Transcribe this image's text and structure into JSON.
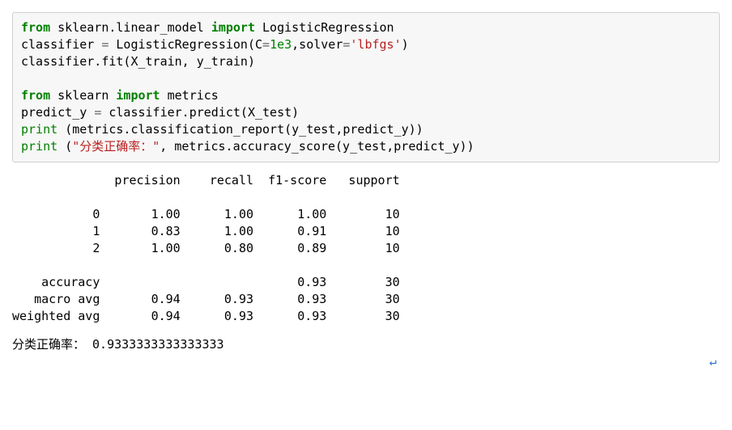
{
  "code": {
    "kw_from": "from",
    "kw_import": "import",
    "mod_linear_model": "sklearn.linear_model",
    "cls_logreg": "LogisticRegression",
    "assign_classifier": "classifier ",
    "eq": "=",
    "space": " ",
    "logreg_call_open": "LogisticRegression(C",
    "c_val": "1e3",
    "solver_kw": ",solver",
    "solver_val": "'lbfgs'",
    "close_paren": ")",
    "fit_line": "classifier.fit(X_train, y_train)",
    "mod_sklearn": "sklearn",
    "metrics_word": "metrics",
    "predict_line": "predict_y ",
    "predict_rhs": " classifier.predict(X_test)",
    "print_word": "print",
    "report_args": "(metrics.classification_report(y_test,predict_y))",
    "acc_open": "(",
    "acc_str": "\"分类正确率：\"",
    "acc_rest": ", metrics.accuracy_score(y_test,predict_y))"
  },
  "report": {
    "header": "              precision    recall  f1-score   support",
    "rows": [
      "           0       1.00      1.00      1.00        10",
      "           1       0.83      1.00      0.91        10",
      "           2       1.00      0.80      0.89        10"
    ],
    "summary": [
      "    accuracy                           0.93        30",
      "   macro avg       0.94      0.93      0.93        30",
      "weighted avg       0.94      0.93      0.93        30"
    ]
  },
  "accuracy_line": "分类正确率： 0.9333333333333333",
  "cursor": "↵"
}
